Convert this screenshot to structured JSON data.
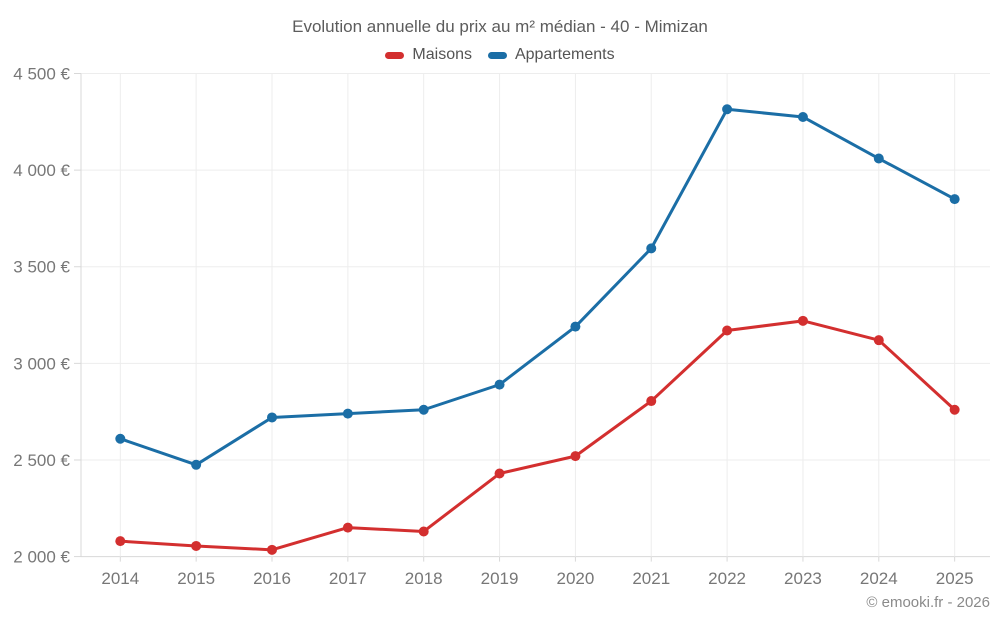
{
  "chart_data": {
    "type": "line",
    "title": "Evolution annuelle du prix au m² médian - 40 - Mimizan",
    "categories": [
      "2014",
      "2015",
      "2016",
      "2017",
      "2018",
      "2019",
      "2020",
      "2021",
      "2022",
      "2023",
      "2024",
      "2025"
    ],
    "series": [
      {
        "name": "Maisons",
        "color": "#d32f2f",
        "values": [
          2080,
          2055,
          2035,
          2150,
          2130,
          2430,
          2520,
          2805,
          3170,
          3220,
          3120,
          2760
        ]
      },
      {
        "name": "Appartements",
        "color": "#1b6ea6",
        "values": [
          2610,
          2475,
          2720,
          2740,
          2760,
          2890,
          3190,
          3595,
          4315,
          4275,
          4060,
          3850
        ]
      }
    ],
    "ylim": [
      2000,
      4500
    ],
    "ytick_interval": 500,
    "ytick_labels": [
      "2 000 €",
      "2 500 €",
      "3 000 €",
      "3 500 €",
      "4 000 €",
      "4 500 €"
    ],
    "xlabel": "",
    "ylabel": "",
    "grid": true,
    "legend_position": "top",
    "currency": "€"
  },
  "footer": {
    "credit": "© emooki.fr - 2026"
  }
}
